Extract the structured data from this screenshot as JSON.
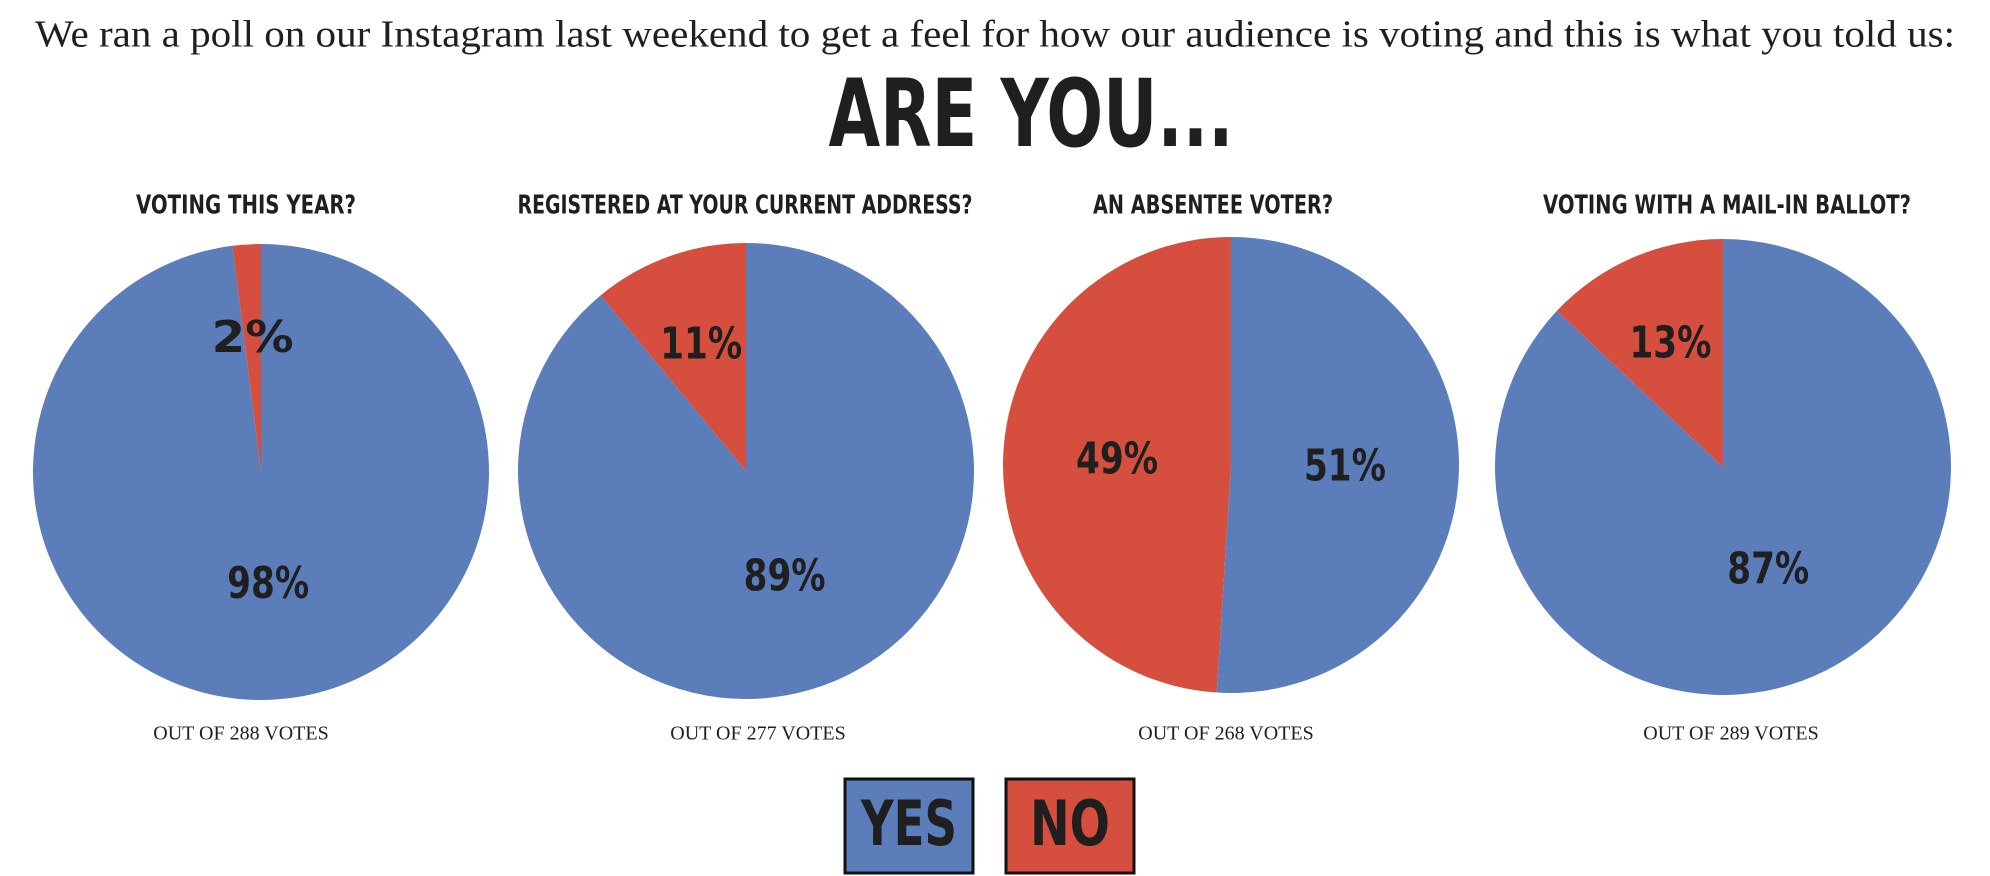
{
  "intro": "We ran a poll on our Instagram last weekend to get a feel for how our audience is voting and this is what you told us:",
  "heading": "ARE YOU...",
  "legend": [
    {
      "name": "YES",
      "color": "#5b7dba"
    },
    {
      "name": "NO",
      "color": "#d64f3e"
    }
  ],
  "chart_data": [
    {
      "type": "pie",
      "title": "VOTING THIS YEAR?",
      "values": [
        98,
        2
      ],
      "value_labels": [
        "98%",
        "2%"
      ],
      "colors": [
        "#5b7dba",
        "#d64f3e"
      ],
      "footnote": "OUT OF 288 VOTES"
    },
    {
      "type": "pie",
      "title": "REGISTERED AT YOUR CURRENT ADDRESS?",
      "values": [
        89,
        11
      ],
      "value_labels": [
        "89%",
        "11%"
      ],
      "colors": [
        "#5b7dba",
        "#d64f3e"
      ],
      "footnote": "OUT OF 277 VOTES"
    },
    {
      "type": "pie",
      "title": "AN ABSENTEE VOTER?",
      "values": [
        51,
        49
      ],
      "value_labels": [
        "51%",
        "49%"
      ],
      "colors": [
        "#5b7dba",
        "#d64f3e"
      ],
      "footnote": "OUT OF 268 VOTES"
    },
    {
      "type": "pie",
      "title": "VOTING WITH A MAIL-IN BALLOT?",
      "values": [
        87,
        13
      ],
      "value_labels": [
        "87%",
        "13%"
      ],
      "colors": [
        "#5b7dba",
        "#d64f3e"
      ],
      "footnote": "OUT OF 289 VOTES"
    }
  ]
}
